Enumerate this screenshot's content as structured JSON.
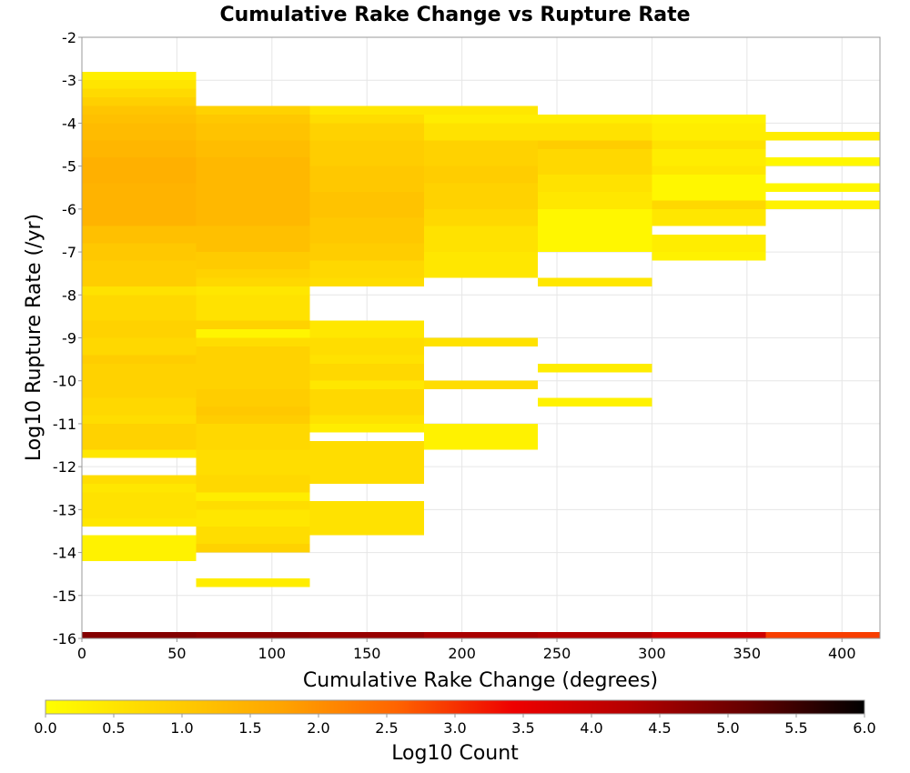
{
  "chart_data": {
    "type": "heatmap",
    "title": "Cumulative Rake Change vs Rupture Rate",
    "xlabel": "Cumulative Rake Change (degrees)",
    "ylabel": "Log10 Rupture Rate (/yr)",
    "xlim": [
      0,
      420
    ],
    "ylim": [
      -16,
      -2
    ],
    "x_ticks": [
      "0",
      "50",
      "100",
      "150",
      "200",
      "250",
      "300",
      "350",
      "400"
    ],
    "y_ticks": [
      "-2",
      "-3",
      "-4",
      "-5",
      "-6",
      "-7",
      "-8",
      "-9",
      "-10",
      "-11",
      "-12",
      "-13",
      "-14",
      "-15",
      "-16"
    ],
    "grid": true,
    "x_bin_edges": [
      0,
      60,
      120,
      180,
      240,
      300,
      360,
      420
    ],
    "y_bin_height": 0.2,
    "colorbar": {
      "label": "Log10 Count",
      "range": [
        0,
        6
      ],
      "ticks": [
        "0.0",
        "0.5",
        "1.0",
        "1.5",
        "2.0",
        "2.5",
        "3.0",
        "3.5",
        "4.0",
        "4.5",
        "5.0",
        "5.5",
        "6.0"
      ],
      "colors": [
        "#ffff00",
        "#ffd200",
        "#ffa500",
        "#ff6400",
        "#ee0000",
        "#b40000",
        "#640000",
        "#000000"
      ]
    },
    "cells": [
      {
        "x_bin": 0,
        "y_runs": [
          [
            -3.0,
            -2.8,
            0.3
          ],
          [
            -3.2,
            -3.0,
            0.5
          ],
          [
            -3.4,
            -3.2,
            0.7
          ],
          [
            -3.6,
            -3.4,
            0.9
          ],
          [
            -3.8,
            -3.6,
            1.1
          ],
          [
            -4.0,
            -3.8,
            1.2
          ],
          [
            -4.4,
            -4.0,
            1.3
          ],
          [
            -4.8,
            -4.4,
            1.4
          ],
          [
            -5.4,
            -4.8,
            1.5
          ],
          [
            -6.4,
            -5.4,
            1.45
          ],
          [
            -6.8,
            -6.4,
            1.2
          ],
          [
            -7.2,
            -6.8,
            1.05
          ],
          [
            -7.8,
            -7.2,
            0.95
          ],
          [
            -8.0,
            -7.8,
            0.55
          ],
          [
            -8.6,
            -8.0,
            0.75
          ],
          [
            -9.0,
            -8.6,
            0.85
          ],
          [
            -9.4,
            -9.0,
            0.75
          ],
          [
            -9.6,
            -9.4,
            0.95
          ],
          [
            -10.4,
            -9.6,
            0.85
          ],
          [
            -10.8,
            -10.4,
            0.75
          ],
          [
            -11.0,
            -10.8,
            0.65
          ],
          [
            -11.6,
            -11.0,
            0.85
          ],
          [
            -11.8,
            -11.6,
            0.45
          ],
          [
            -12.2,
            -11.8,
            null
          ],
          [
            -12.4,
            -12.2,
            0.65
          ],
          [
            -12.6,
            -12.4,
            0.45
          ],
          [
            -13.2,
            -12.6,
            0.55
          ],
          [
            -13.4,
            -13.2,
            0.45
          ],
          [
            -13.6,
            -13.4,
            null
          ],
          [
            -14.2,
            -13.6,
            0.25
          ]
        ]
      },
      {
        "x_bin": 1,
        "y_runs": [
          [
            -3.8,
            -3.6,
            0.85
          ],
          [
            -4.0,
            -3.8,
            1.05
          ],
          [
            -4.4,
            -4.0,
            1.15
          ],
          [
            -4.8,
            -4.4,
            1.25
          ],
          [
            -6.4,
            -4.8,
            1.35
          ],
          [
            -7.0,
            -6.4,
            1.2
          ],
          [
            -7.4,
            -7.0,
            1.0
          ],
          [
            -7.6,
            -7.4,
            0.85
          ],
          [
            -7.8,
            -7.6,
            0.75
          ],
          [
            -8.0,
            -7.8,
            0.45
          ],
          [
            -8.6,
            -8.0,
            0.55
          ],
          [
            -8.8,
            -8.6,
            0.85
          ],
          [
            -9.0,
            -8.8,
            0.2
          ],
          [
            -9.2,
            -9.0,
            0.65
          ],
          [
            -10.2,
            -9.2,
            0.85
          ],
          [
            -10.6,
            -10.2,
            0.95
          ],
          [
            -10.8,
            -10.6,
            1.05
          ],
          [
            -11.0,
            -10.8,
            0.95
          ],
          [
            -11.6,
            -11.0,
            0.75
          ],
          [
            -12.2,
            -11.6,
            0.65
          ],
          [
            -12.6,
            -12.2,
            0.75
          ],
          [
            -12.8,
            -12.6,
            0.35
          ],
          [
            -13.0,
            -12.8,
            0.65
          ],
          [
            -13.4,
            -13.0,
            0.45
          ],
          [
            -13.8,
            -13.4,
            0.65
          ],
          [
            -14.0,
            -13.8,
            0.85
          ],
          [
            -14.6,
            -14.0,
            null
          ],
          [
            -14.8,
            -14.6,
            0.35
          ]
        ]
      },
      {
        "x_bin": 2,
        "y_runs": [
          [
            -3.8,
            -3.6,
            0.45
          ],
          [
            -4.0,
            -3.8,
            0.65
          ],
          [
            -4.4,
            -4.0,
            0.85
          ],
          [
            -5.0,
            -4.4,
            0.95
          ],
          [
            -5.6,
            -5.0,
            1.05
          ],
          [
            -6.2,
            -5.6,
            1.15
          ],
          [
            -6.8,
            -6.2,
            1.05
          ],
          [
            -7.2,
            -6.8,
            0.95
          ],
          [
            -7.6,
            -7.2,
            0.75
          ],
          [
            -7.8,
            -7.6,
            0.65
          ],
          [
            -8.6,
            -7.8,
            null
          ],
          [
            -9.0,
            -8.6,
            0.45
          ],
          [
            -9.4,
            -9.0,
            0.65
          ],
          [
            -9.6,
            -9.4,
            0.55
          ],
          [
            -10.0,
            -9.6,
            0.75
          ],
          [
            -10.2,
            -10.0,
            0.45
          ],
          [
            -10.8,
            -10.2,
            0.75
          ],
          [
            -11.0,
            -10.8,
            0.55
          ],
          [
            -11.2,
            -11.0,
            0.35
          ],
          [
            -11.4,
            -11.2,
            null
          ],
          [
            -12.4,
            -11.4,
            0.65
          ],
          [
            -12.8,
            -12.4,
            null
          ],
          [
            -13.6,
            -12.8,
            0.55
          ]
        ]
      },
      {
        "x_bin": 3,
        "y_runs": [
          [
            -3.8,
            -3.6,
            0.45
          ],
          [
            -4.0,
            -3.8,
            0.35
          ],
          [
            -4.4,
            -4.0,
            0.55
          ],
          [
            -5.0,
            -4.4,
            0.85
          ],
          [
            -5.4,
            -5.0,
            0.95
          ],
          [
            -6.0,
            -5.4,
            0.85
          ],
          [
            -6.4,
            -6.0,
            0.75
          ],
          [
            -7.0,
            -6.4,
            0.55
          ],
          [
            -7.6,
            -7.0,
            0.45
          ],
          [
            -9.0,
            -7.6,
            null
          ],
          [
            -9.2,
            -9.0,
            0.55
          ],
          [
            -10.0,
            -9.2,
            null
          ],
          [
            -10.2,
            -10.0,
            0.65
          ],
          [
            -11.0,
            -10.2,
            null
          ],
          [
            -11.6,
            -11.0,
            0.25
          ]
        ]
      },
      {
        "x_bin": 4,
        "y_runs": [
          [
            -4.0,
            -3.8,
            0.35
          ],
          [
            -4.4,
            -4.0,
            0.55
          ],
          [
            -4.6,
            -4.4,
            0.95
          ],
          [
            -5.2,
            -4.6,
            0.75
          ],
          [
            -5.6,
            -5.2,
            0.55
          ],
          [
            -6.0,
            -5.6,
            0.45
          ],
          [
            -7.0,
            -6.0,
            0.15
          ],
          [
            -7.6,
            -7.0,
            null
          ],
          [
            -7.8,
            -7.6,
            0.45
          ],
          [
            -9.6,
            -7.8,
            null
          ],
          [
            -9.8,
            -9.6,
            0.35
          ],
          [
            -10.4,
            -9.8,
            null
          ],
          [
            -10.6,
            -10.4,
            0.25
          ]
        ]
      },
      {
        "x_bin": 5,
        "y_runs": [
          [
            -4.0,
            -3.8,
            0.25
          ],
          [
            -4.4,
            -4.0,
            0.35
          ],
          [
            -4.6,
            -4.4,
            0.55
          ],
          [
            -5.0,
            -4.6,
            0.35
          ],
          [
            -5.2,
            -5.0,
            0.45
          ],
          [
            -5.8,
            -5.2,
            0.15
          ],
          [
            -6.0,
            -5.8,
            0.75
          ],
          [
            -6.4,
            -6.0,
            0.45
          ],
          [
            -6.6,
            -6.4,
            null
          ],
          [
            -7.0,
            -6.6,
            0.35
          ],
          [
            -7.2,
            -7.0,
            0.25
          ]
        ]
      },
      {
        "x_bin": 6,
        "y_runs": [
          [
            -4.4,
            -4.2,
            0.35
          ],
          [
            -4.8,
            -4.4,
            null
          ],
          [
            -5.0,
            -4.8,
            0.15
          ],
          [
            -5.4,
            -5.0,
            null
          ],
          [
            -5.6,
            -5.4,
            0.15
          ],
          [
            -5.8,
            -5.6,
            null
          ],
          [
            -6.0,
            -5.8,
            0.25
          ]
        ]
      }
    ],
    "bottom_strip": [
      {
        "x_bin": 0,
        "value": 4.8
      },
      {
        "x_bin": 1,
        "value": 4.7
      },
      {
        "x_bin": 2,
        "value": 4.6
      },
      {
        "x_bin": 3,
        "value": 4.4
      },
      {
        "x_bin": 4,
        "value": 4.3
      },
      {
        "x_bin": 5,
        "value": 3.9
      },
      {
        "x_bin": 6,
        "value": 2.9
      }
    ]
  }
}
